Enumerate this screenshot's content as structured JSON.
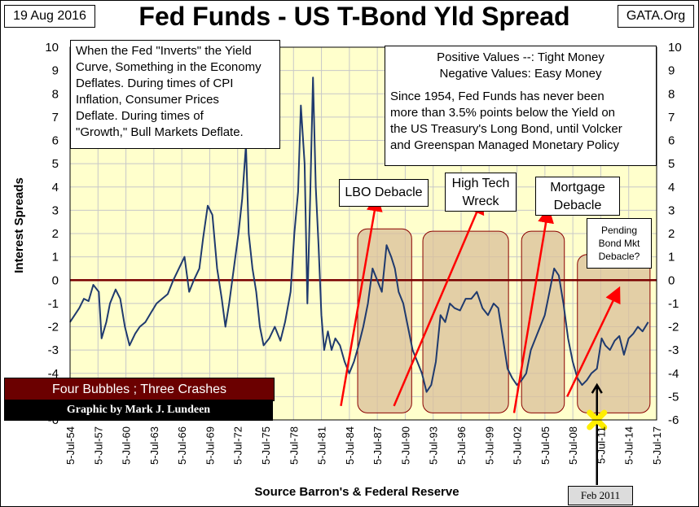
{
  "header": {
    "date": "19 Aug 2016",
    "title": "Fed Funds - US T-Bond Yld Spread",
    "source": "GATA.Org"
  },
  "notes": {
    "left": "When the Fed \"Inverts\" the Yield\nCurve, Something in the Economy\nDeflates.  During times of CPI\nInflation, Consumer Prices\nDeflate.  During times of\n\"Growth,\" Bull Markets Deflate.",
    "right_line1": "Positive Values --: Tight Money",
    "right_line2": "Negative Values: Easy Money",
    "right_body": "Since 1954, Fed Funds has never been\nmore than 3.5% points below the Yield on\nthe US Treasury's Long Bond, until Volcker\nand Greenspan Managed Monetary Policy"
  },
  "callouts": {
    "lbo": "LBO Debacle",
    "tech": "High Tech\nWreck",
    "mortgage": "Mortgage\nDebacle",
    "pending": "Pending\nBond Mkt\nDebacle?"
  },
  "footer": {
    "bubbles": "Four Bubbles ; Three Crashes",
    "graphic_by": "Graphic by Mark J. Lundeen",
    "marker": "Feb 2011"
  },
  "colors": {
    "plot_bg": "#ffffcc",
    "grid": "#c8c8c8",
    "series": "#1f3a6e",
    "zero_line": "#7a0000",
    "arrows": "#ff0000",
    "bubble_fill": "#d9bf9a",
    "bubble_border": "#8b0000",
    "marker": "#ffee00"
  },
  "chart_data": {
    "type": "line",
    "title": "Fed Funds - US T-Bond Yld Spread",
    "xlabel": "Source Barron's & Federal Reserve",
    "ylabel": "Interest Spreads",
    "ylim": [
      -6,
      10
    ],
    "xlim": [
      "1954-07-05",
      "2017-07-05"
    ],
    "y_ticks": [
      10,
      9,
      8,
      7,
      6,
      5,
      4,
      3,
      2,
      1,
      0,
      -1,
      -2,
      -3,
      -4,
      -5,
      -6
    ],
    "x_tick_labels": [
      "5-Jul-54",
      "5-Jul-57",
      "5-Jul-60",
      "5-Jul-63",
      "5-Jul-66",
      "5-Jul-69",
      "5-Jul-72",
      "5-Jul-75",
      "5-Jul-78",
      "5-Jul-81",
      "5-Jul-84",
      "5-Jul-87",
      "5-Jul-90",
      "5-Jul-93",
      "5-Jul-96",
      "5-Jul-99",
      "5-Jul-02",
      "5-Jul-05",
      "5-Jul-08",
      "5-Jul-11",
      "5-Jul-14",
      "5-Jul-17"
    ],
    "grid": true,
    "series": [
      {
        "x": [
          1954.5,
          1955.0,
          1955.5,
          1956.0,
          1956.5,
          1957.0,
          1957.6,
          1957.9,
          1958.4,
          1958.8,
          1959.4,
          1959.9,
          1960.4,
          1960.9,
          1961.5,
          1962.0,
          1962.6,
          1963.2,
          1963.8,
          1964.4,
          1965.0,
          1965.6,
          1966.2,
          1966.8,
          1967.3,
          1967.8,
          1968.4,
          1968.8,
          1969.3,
          1969.8,
          1970.3,
          1970.8,
          1971.2,
          1971.6,
          1972.1,
          1972.6,
          1973.0,
          1973.4,
          1973.7,
          1974.1,
          1974.5,
          1974.9,
          1975.3,
          1975.9,
          1976.5,
          1977.1,
          1977.6,
          1978.2,
          1978.6,
          1979.0,
          1979.3,
          1979.7,
          1980.0,
          1980.3,
          1980.6,
          1980.9,
          1981.2,
          1981.5,
          1981.8,
          1982.2,
          1982.6,
          1983.0,
          1983.5,
          1984.0,
          1984.5,
          1985.0,
          1985.5,
          1986.0,
          1986.5,
          1987.0,
          1987.5,
          1988.0,
          1988.5,
          1989.0,
          1989.4,
          1989.8,
          1990.3,
          1990.8,
          1991.3,
          1991.8,
          1992.3,
          1992.8,
          1993.3,
          1993.8,
          1994.3,
          1994.8,
          1995.3,
          1995.8,
          1996.4,
          1997.0,
          1997.6,
          1998.2,
          1998.8,
          1999.4,
          2000.0,
          2000.5,
          2001.0,
          2001.5,
          2002.0,
          2002.5,
          2003.0,
          2003.5,
          2004.0,
          2004.5,
          2005.0,
          2005.5,
          2006.0,
          2006.5,
          2007.0,
          2007.5,
          2008.0,
          2008.5,
          2009.0,
          2009.5,
          2010.0,
          2010.5,
          2011.1,
          2011.6,
          2012.0,
          2012.5,
          2013.0,
          2013.5,
          2014.0,
          2014.5,
          2015.0,
          2015.5,
          2016.0,
          2016.6
        ],
        "y": [
          -1.8,
          -1.5,
          -1.2,
          -0.8,
          -0.9,
          -0.2,
          -0.5,
          -2.5,
          -1.8,
          -1.0,
          -0.4,
          -0.8,
          -2.0,
          -2.8,
          -2.3,
          -2.0,
          -1.8,
          -1.4,
          -1.0,
          -0.8,
          -0.6,
          0.0,
          0.5,
          1.0,
          -0.5,
          0.0,
          0.5,
          1.8,
          3.2,
          2.8,
          0.5,
          -0.8,
          -2.0,
          -1.0,
          0.5,
          2.0,
          3.5,
          5.8,
          2.0,
          0.5,
          -0.5,
          -2.0,
          -2.8,
          -2.5,
          -2.0,
          -2.6,
          -1.8,
          -0.5,
          2.0,
          3.8,
          7.5,
          5.0,
          -1.0,
          3.5,
          8.7,
          4.0,
          1.5,
          -1.5,
          -3.0,
          -2.2,
          -3.0,
          -2.5,
          -2.8,
          -3.5,
          -4.0,
          -3.5,
          -2.8,
          -2.0,
          -1.0,
          0.5,
          0.0,
          -0.5,
          1.5,
          1.0,
          0.5,
          -0.5,
          -1.0,
          -2.0,
          -3.0,
          -3.5,
          -4.0,
          -4.8,
          -4.5,
          -3.5,
          -1.5,
          -1.8,
          -1.0,
          -1.2,
          -1.3,
          -0.8,
          -0.8,
          -0.5,
          -1.2,
          -1.5,
          -1.0,
          -1.2,
          -2.5,
          -3.8,
          -4.2,
          -4.5,
          -4.3,
          -4.0,
          -3.0,
          -2.5,
          -2.0,
          -1.5,
          -0.5,
          0.5,
          0.2,
          -1.0,
          -2.5,
          -3.5,
          -4.2,
          -4.5,
          -4.3,
          -4.0,
          -3.8,
          -2.5,
          -2.8,
          -3.0,
          -2.6,
          -2.4,
          -3.2,
          -2.5,
          -2.3,
          -2.0,
          -2.2,
          -1.8
        ]
      }
    ],
    "annotations": [
      "LBO Debacle",
      "High Tech\nWreck",
      "Mortgage\nDebacle",
      "Pending\nBond Mkt\nDebacle?",
      "Feb 2011"
    ]
  }
}
